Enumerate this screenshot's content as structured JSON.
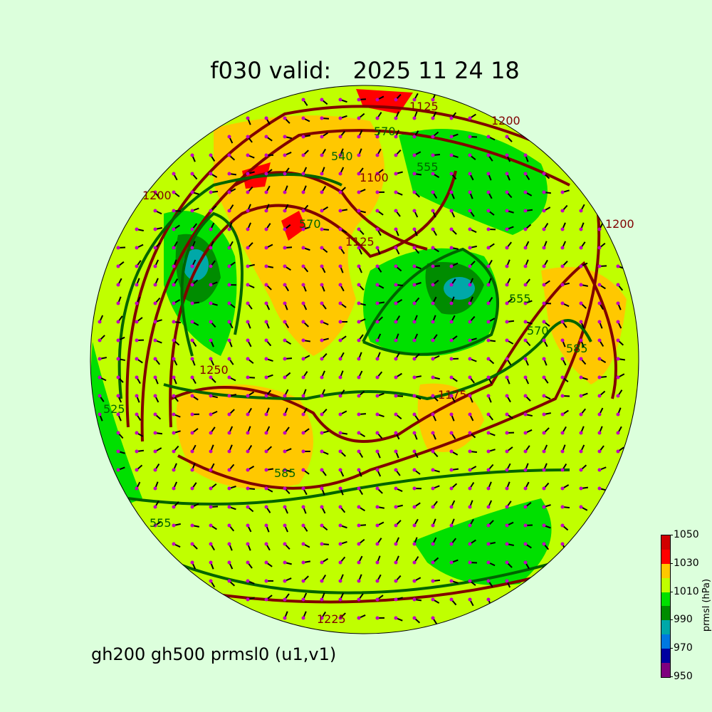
{
  "title": "f030 valid:   2025 11 24 18",
  "footer": "gh200 gh500 prmsl0 (u1,v1)",
  "colorbar": {
    "label": "prmsl (hPa)",
    "ticks": [
      "950",
      "970",
      "990",
      "1010",
      "1030",
      "1050"
    ],
    "levels": [
      950,
      960,
      970,
      980,
      990,
      1000,
      1010,
      1020,
      1030,
      1040,
      1050
    ],
    "colors": [
      "#7f007f",
      "#0000a0",
      "#0078e0",
      "#00a8a8",
      "#008c00",
      "#00e000",
      "#c0ff00",
      "#ffc800",
      "#ff0000",
      "#d00000"
    ]
  },
  "map": {
    "projection": "orthographic",
    "background_fill": "#c0ff00",
    "gh200_contour_color": "#800000",
    "gh500_contour_color": "#006400",
    "wind_barb_color": "#000000",
    "wind_dot_color": "#c000c0",
    "contour_labels": {
      "gh200": [
        "1200",
        "1100",
        "1125",
        "1175",
        "1250",
        "1200",
        "1225",
        "1200",
        "1125"
      ],
      "gh500": [
        "570",
        "555",
        "570",
        "585",
        "585",
        "570",
        "555",
        "555",
        "525",
        "540"
      ]
    }
  }
}
